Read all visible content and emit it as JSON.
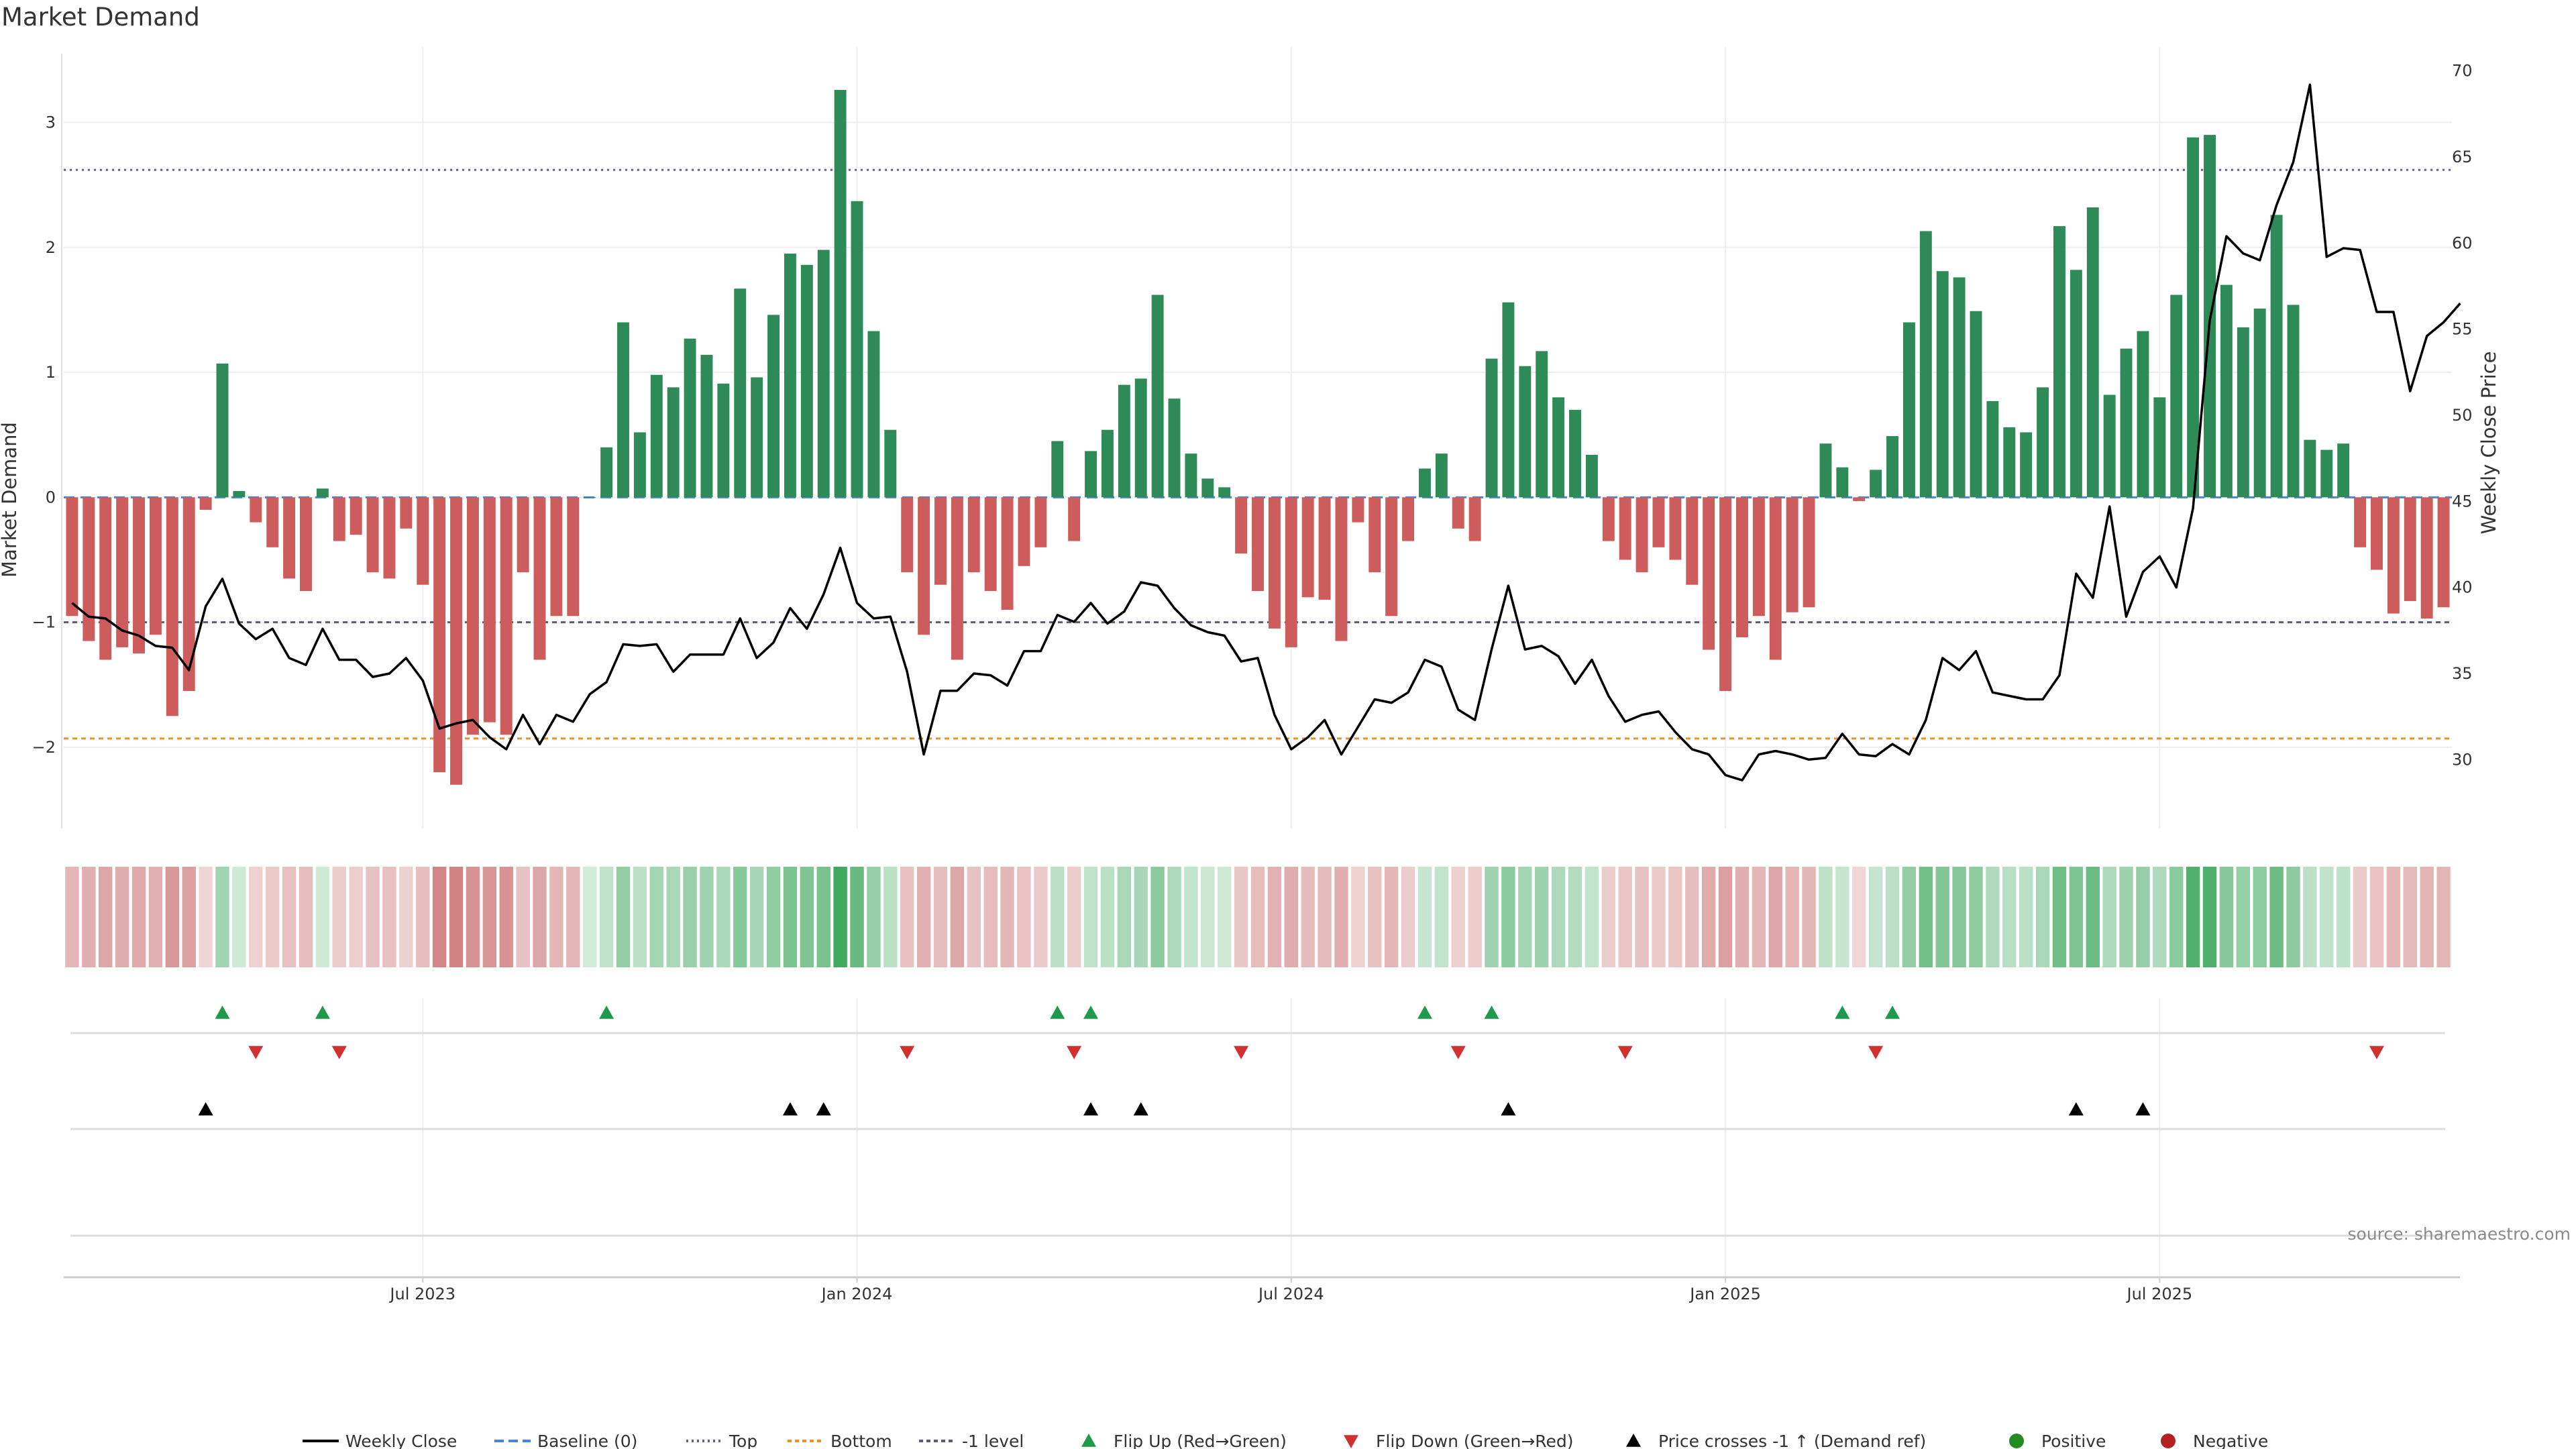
{
  "chart_data": {
    "type": "bar",
    "title": "Market Demand",
    "ylabel_left": "Market Demand",
    "ylabel_right": "Weekly Close Price",
    "ylim_left": [
      -2.65,
      3.55
    ],
    "ylim_right": [
      26,
      71
    ],
    "yticks_left": [
      3,
      2,
      1,
      0,
      -1,
      -2
    ],
    "yticks_left_labels": [
      "3",
      "2",
      "1",
      "0",
      "−1",
      "−2"
    ],
    "yticks_right": [
      70,
      65,
      60,
      55,
      50,
      45,
      40,
      35,
      30
    ],
    "xticks": [
      {
        "index": 21,
        "label": "Jul 2023"
      },
      {
        "index": 47,
        "label": "Jan 2024"
      },
      {
        "index": 73,
        "label": "Jul 2024"
      },
      {
        "index": 99,
        "label": "Jan 2025"
      },
      {
        "index": 125,
        "label": "Jul 2025"
      }
    ],
    "reference_lines": {
      "baseline": 0,
      "top": 2.62,
      "bottom": -1.93,
      "minus_one": -1.0
    },
    "market_demand": [
      -0.95,
      -1.15,
      -1.3,
      -1.2,
      -1.25,
      -1.1,
      -1.75,
      -1.55,
      -0.1,
      1.07,
      0.05,
      -0.2,
      -0.4,
      -0.65,
      -0.75,
      0.07,
      -0.35,
      -0.3,
      -0.6,
      -0.65,
      -0.25,
      -0.7,
      -2.2,
      -2.3,
      -1.9,
      -1.8,
      -1.9,
      -0.6,
      -1.3,
      -0.95,
      -0.95,
      0.0,
      0.4,
      1.4,
      0.52,
      0.98,
      0.88,
      1.27,
      1.14,
      0.91,
      1.67,
      0.96,
      1.46,
      1.95,
      1.86,
      1.98,
      3.26,
      2.37,
      1.33,
      0.54,
      -0.6,
      -1.1,
      -0.7,
      -1.3,
      -0.6,
      -0.75,
      -0.9,
      -0.55,
      -0.4,
      0.45,
      -0.35,
      0.37,
      0.54,
      0.9,
      0.95,
      1.62,
      0.79,
      0.35,
      0.15,
      0.08,
      -0.45,
      -0.75,
      -1.05,
      -1.2,
      -0.8,
      -0.82,
      -1.15,
      -0.2,
      -0.6,
      -0.95,
      -0.35,
      0.23,
      0.35,
      -0.25,
      -0.35,
      1.11,
      1.56,
      1.05,
      1.17,
      0.8,
      0.7,
      0.34,
      -0.35,
      -0.5,
      -0.6,
      -0.4,
      -0.5,
      -0.7,
      -1.22,
      -1.55,
      -1.12,
      -0.95,
      -1.3,
      -0.92,
      -0.88,
      0.43,
      0.24,
      -0.03,
      0.22,
      0.49,
      1.4,
      2.13,
      1.81,
      1.76,
      1.49,
      0.77,
      0.56,
      0.52,
      0.88,
      2.17,
      1.82,
      2.32,
      0.82,
      1.19,
      1.33,
      0.8,
      1.62,
      2.88,
      2.9,
      1.7,
      1.36,
      1.51,
      2.26,
      1.54,
      0.46,
      0.38,
      0.43,
      -0.4,
      -0.58,
      -0.93,
      -0.83,
      -0.97,
      -0.88
    ],
    "weekly_close": [
      39.1,
      38.3,
      38.2,
      37.5,
      37.2,
      36.6,
      36.5,
      35.2,
      38.9,
      40.5,
      37.9,
      37.0,
      37.6,
      35.9,
      35.5,
      37.6,
      35.8,
      35.8,
      34.8,
      35.0,
      35.9,
      34.6,
      31.8,
      32.1,
      32.3,
      31.3,
      30.6,
      32.6,
      30.9,
      32.6,
      32.2,
      33.8,
      34.5,
      36.7,
      36.6,
      36.7,
      35.1,
      36.1,
      36.1,
      36.1,
      38.2,
      35.9,
      36.8,
      38.8,
      37.6,
      39.6,
      42.3,
      39.1,
      38.2,
      38.3,
      35.1,
      30.3,
      34.0,
      34.0,
      35.0,
      34.9,
      34.3,
      36.3,
      36.3,
      38.4,
      38.0,
      39.1,
      37.9,
      38.6,
      40.3,
      40.1,
      38.8,
      37.8,
      37.4,
      37.2,
      35.7,
      35.9,
      32.6,
      30.6,
      31.3,
      32.3,
      30.3,
      31.9,
      33.5,
      33.3,
      33.9,
      35.8,
      35.4,
      32.9,
      32.3,
      36.4,
      40.1,
      36.4,
      36.6,
      36.0,
      34.4,
      35.8,
      33.7,
      32.2,
      32.6,
      32.8,
      31.6,
      30.6,
      30.3,
      29.1,
      28.8,
      30.3,
      30.5,
      30.3,
      30.0,
      30.1,
      31.5,
      30.3,
      30.2,
      30.9,
      30.3,
      32.3,
      35.9,
      35.2,
      36.3,
      33.9,
      33.7,
      33.5,
      33.5,
      34.9,
      40.8,
      39.4,
      44.7,
      38.3,
      40.9,
      41.8,
      40.0,
      44.6,
      55.5,
      60.4,
      59.4,
      59.0,
      62.2,
      64.7,
      69.2,
      59.2,
      59.7,
      59.6,
      56.0,
      56.0,
      51.4,
      54.6,
      55.4,
      56.5
    ],
    "flip_up_indices": [
      9,
      15,
      32,
      59,
      61,
      81,
      85,
      106,
      109
    ],
    "flip_down_indices": [
      11,
      16,
      50,
      60,
      70,
      83,
      93,
      108,
      138
    ],
    "price_cross_indices": [
      8,
      43,
      45,
      61,
      64,
      86,
      120,
      124
    ],
    "legend": [
      "Weekly Close",
      "Baseline (0)",
      "Top",
      "Bottom",
      "-1 level",
      "Flip Up (Red→Green)",
      "Flip Down (Green→Red)",
      "Price crosses -1 ↑ (Demand ref)",
      "Positive",
      "Negative"
    ]
  },
  "source": "source: sharemaestro.com",
  "colors": {
    "positive_bar": "#2e8b57",
    "negative_bar": "#cd5c5c",
    "price_line": "#000000",
    "baseline": "#4a86c8",
    "top_line": "#6a5a9a",
    "bottom_line": "#e8922a",
    "minus_one_line": "#5a5a7a",
    "flip_up": "#1e9a4a",
    "flip_down": "#d03030",
    "price_cross": "#000000",
    "positive_dot": "#228b22",
    "negative_dot": "#b22222"
  }
}
